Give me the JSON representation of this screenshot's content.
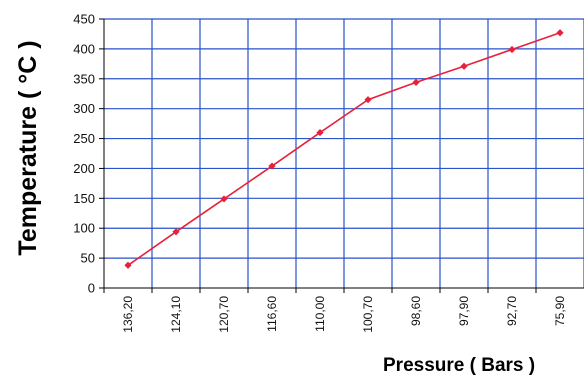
{
  "chart_data": {
    "type": "line",
    "title": "",
    "xlabel": "Pressure ( Bars )",
    "ylabel": "Temperature ( °C )",
    "categories": [
      "136,20",
      "124,10",
      "120,70",
      "116,60",
      "110,00",
      "100,70",
      "98,60",
      "97,90",
      "92,70",
      "75,90"
    ],
    "series": [
      {
        "values": [
          38,
          94,
          149,
          204,
          260,
          315,
          344,
          371,
          399,
          427
        ]
      }
    ],
    "yticks": [
      "0",
      "50",
      "100",
      "150",
      "200",
      "250",
      "300",
      "350",
      "400",
      "450"
    ],
    "ylim": [
      0,
      450
    ],
    "grid": true,
    "legend": "none",
    "colors": {
      "line": "#e8213b",
      "marker": "#e8213b",
      "grid": "#2a52c9",
      "axis": "#000000"
    }
  }
}
